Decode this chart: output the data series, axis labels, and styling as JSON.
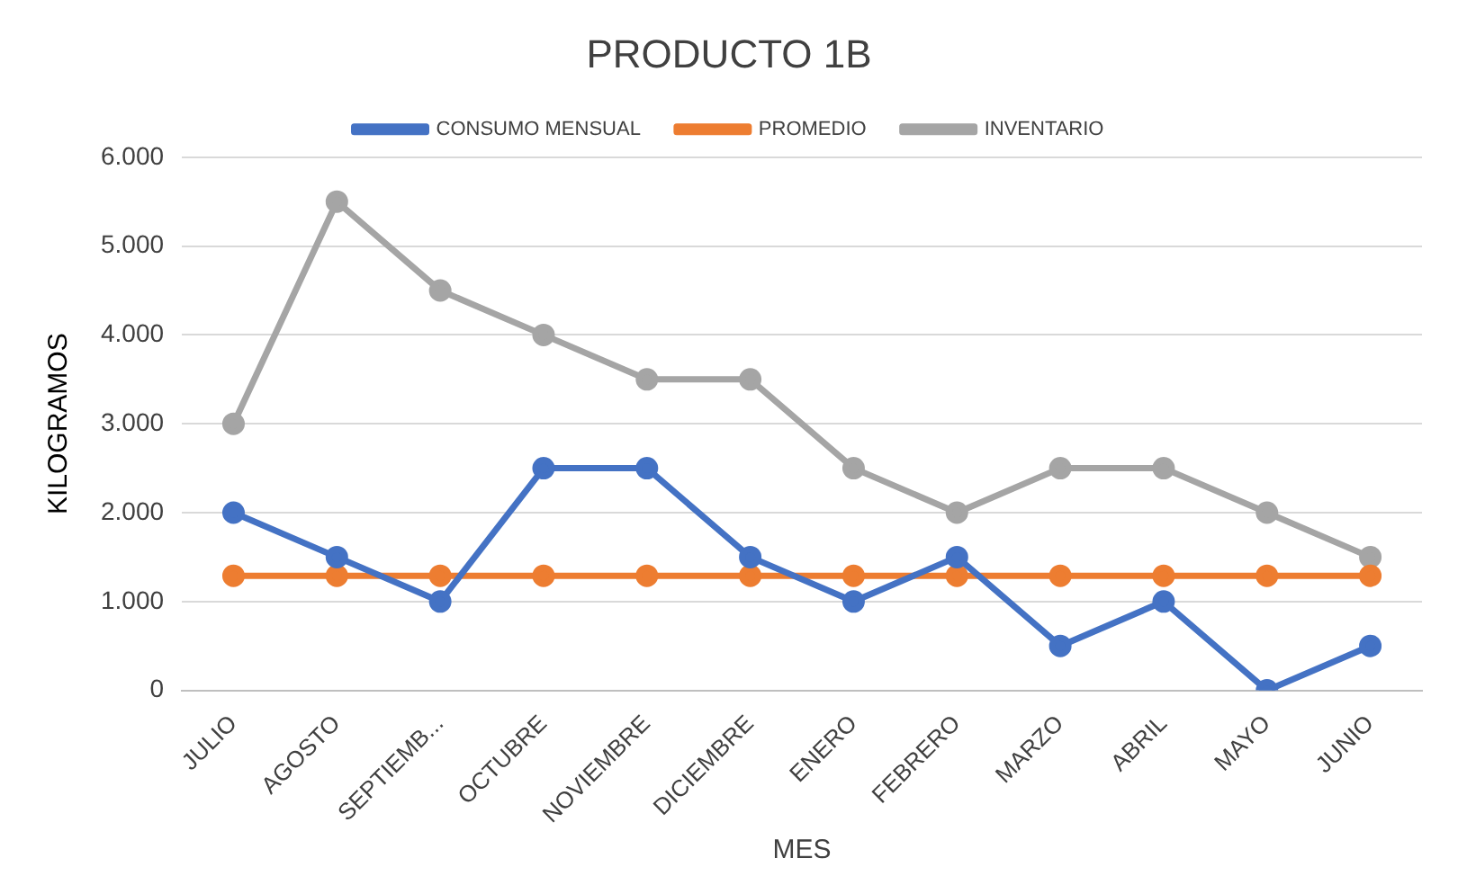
{
  "chart_data": {
    "type": "line",
    "title": "PRODUCTO 1B",
    "xlabel": "MES",
    "ylabel": "KILOGRAMOS",
    "categories": [
      "JULIO",
      "AGOSTO",
      "SEPTIEMB...",
      "OCTUBRE",
      "NOVIEMBRE",
      "DICIEMBRE",
      "ENERO",
      "FEBRERO",
      "MARZO",
      "ABRIL",
      "MAYO",
      "JUNIO"
    ],
    "series": [
      {
        "name": "CONSUMO MENSUAL",
        "color": "#4472c4",
        "values": [
          2000,
          1500,
          1000,
          2500,
          2500,
          1500,
          1000,
          1500,
          500,
          1000,
          0,
          500
        ]
      },
      {
        "name": "PROMEDIO",
        "color": "#ed7d31",
        "values": [
          1290,
          1290,
          1290,
          1290,
          1290,
          1290,
          1290,
          1290,
          1290,
          1290,
          1290,
          1290
        ]
      },
      {
        "name": "INVENTARIO",
        "color": "#a5a5a5",
        "values": [
          3000,
          5500,
          4500,
          4000,
          3500,
          3500,
          2500,
          2000,
          2500,
          2500,
          2000,
          1500
        ]
      }
    ],
    "ylim": [
      0,
      6000
    ],
    "yticks": [
      0,
      {
        "value": 1000,
        "label": "1.000"
      },
      {
        "value": 2000,
        "label": "2.000"
      },
      {
        "value": 3000,
        "label": "3.000"
      },
      {
        "value": 4000,
        "label": "4.000"
      },
      {
        "value": 5000,
        "label": "5.000"
      },
      {
        "value": 6000,
        "label": "6.000"
      }
    ],
    "grid": "y",
    "legend": "top",
    "marker": "circle",
    "line_style": "solid"
  }
}
